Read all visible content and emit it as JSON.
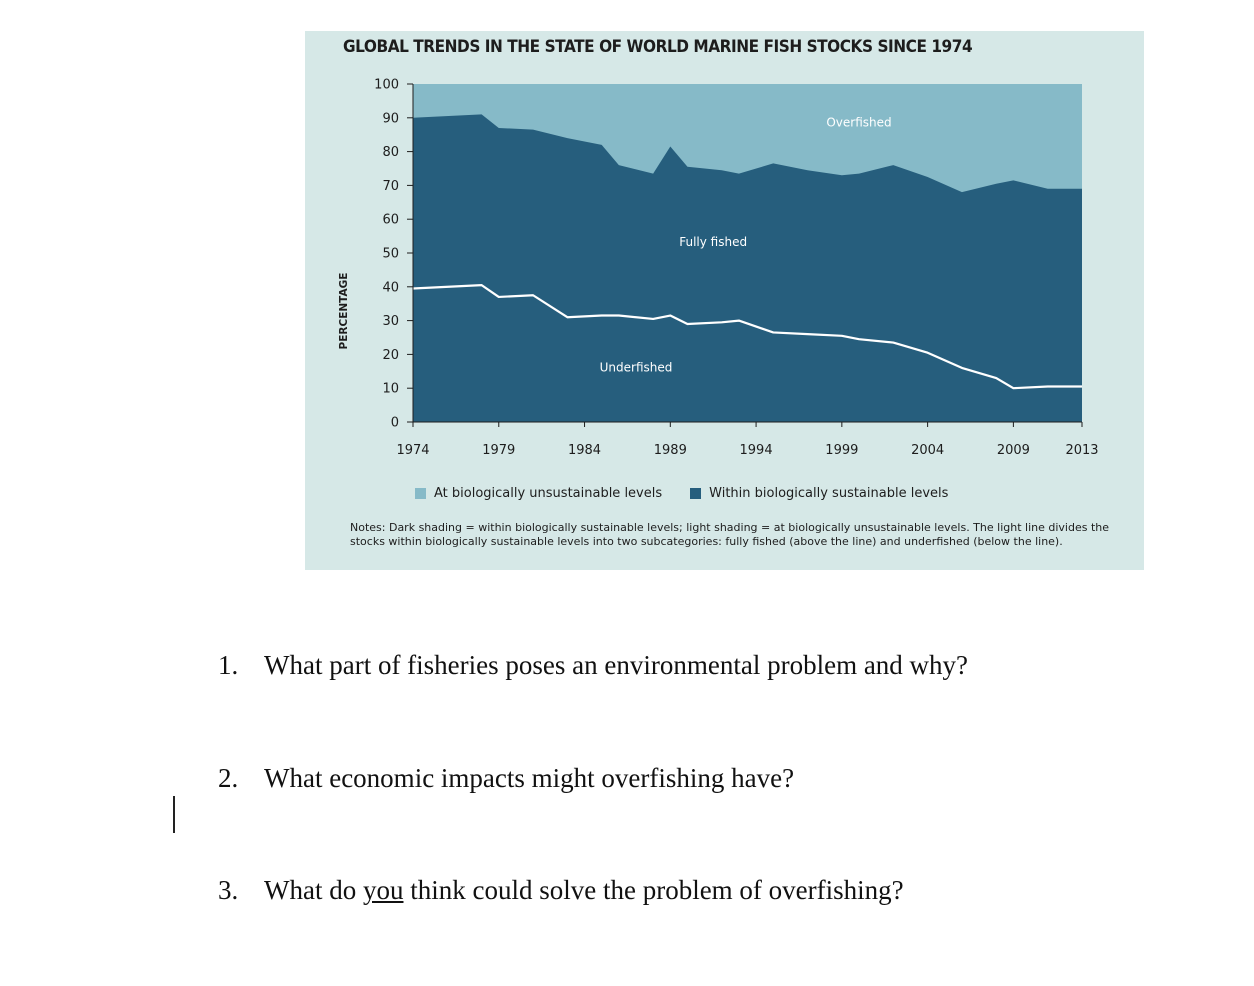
{
  "chart_data": {
    "type": "area",
    "title": "GLOBAL TRENDS IN THE STATE OF WORLD MARINE FISH STOCKS SINCE 1974",
    "xlabel": "",
    "ylabel": "PERCENTAGE",
    "xlim": [
      1974,
      2013
    ],
    "ylim": [
      0,
      100
    ],
    "yticks": [
      0,
      10,
      20,
      30,
      40,
      50,
      60,
      70,
      80,
      90,
      100
    ],
    "xtick_labels": [
      "1974",
      "1979",
      "1984",
      "1989",
      "1994",
      "1999",
      "2004",
      "2009",
      "2013"
    ],
    "x": [
      1974,
      1978,
      1979,
      1981,
      1983,
      1985,
      1986,
      1988,
      1989,
      1990,
      1992,
      1993,
      1995,
      1997,
      1999,
      2000,
      2002,
      2004,
      2006,
      2008,
      2009,
      2011,
      2013
    ],
    "series": [
      {
        "name": "Within biologically sustainable levels",
        "color": "#265e7d",
        "values": [
          90,
          91,
          87,
          86.5,
          84,
          82,
          76,
          73.5,
          81.5,
          75.5,
          74.5,
          73.5,
          76.5,
          74.5,
          73,
          73.5,
          76,
          72.5,
          68,
          70.5,
          71.5,
          69,
          69
        ]
      },
      {
        "name": "Underfished (dividing line)",
        "color": "#ffffff",
        "values": [
          39.5,
          40.5,
          37,
          37.5,
          31,
          31.5,
          31.5,
          30.5,
          31.5,
          29,
          29.5,
          30,
          26.5,
          26,
          25.5,
          24.5,
          23.5,
          20.5,
          16,
          13,
          10,
          10.5,
          10.5
        ]
      }
    ],
    "area_labels": [
      "Overfished",
      "Fully fished",
      "Underfished"
    ],
    "legend": [
      {
        "label": "At biologically unsustainable levels",
        "color": "#86bac8"
      },
      {
        "label": "Within biologically sustainable levels",
        "color": "#265e7d"
      }
    ],
    "notes": "Notes: Dark shading = within biologically sustainable levels; light shading = at biologically unsustainable levels. The light line divides the stocks within biologically sustainable levels into two subcategories: fully fished (above the line) and underfished (below the line)."
  },
  "questions": [
    {
      "number": "1.",
      "text": "What part of fisheries poses an environmental problem and why?"
    },
    {
      "number": "2.",
      "text": "What economic impacts might overfishing have?"
    },
    {
      "number": "3.",
      "before": "What do ",
      "underlined": "you",
      "after": " think could solve the problem of overfishing?"
    }
  ]
}
